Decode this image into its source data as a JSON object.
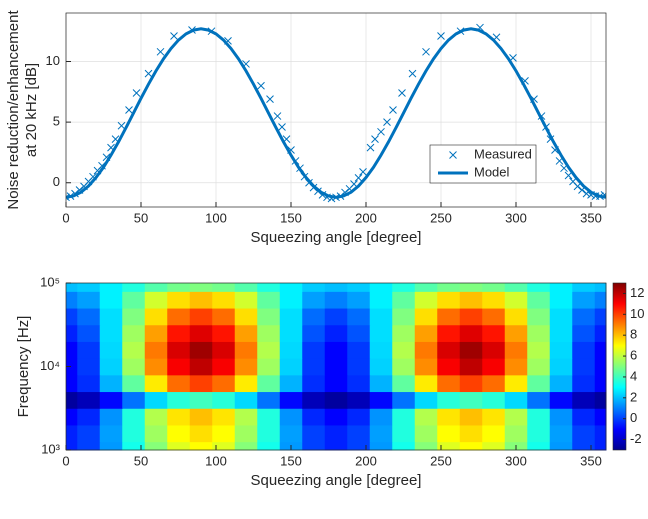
{
  "chart_data": [
    {
      "type": "line",
      "xlabel": "Squeezing angle [degree]",
      "ylabel": [
        "Noise reduction/enhancement",
        "at 20 kHz [dB]"
      ],
      "xlim": [
        0,
        360
      ],
      "xticks": [
        0,
        50,
        100,
        150,
        200,
        250,
        300,
        350
      ],
      "ylim": [
        -2,
        14
      ],
      "yticks": [
        0,
        5,
        10
      ],
      "grid": true,
      "legend": "lower right",
      "series": [
        {
          "name": "Measured",
          "color": "#0072bd",
          "style": "markers",
          "x": [
            0,
            3,
            6,
            9,
            12,
            15,
            18,
            21,
            24,
            27,
            30,
            33,
            37,
            42,
            47,
            55,
            63,
            72,
            84,
            97,
            108,
            120,
            130,
            136,
            141,
            144,
            147,
            150,
            153,
            156,
            159,
            162,
            165,
            168,
            171,
            174,
            177,
            180,
            183,
            186,
            189,
            192,
            195,
            198,
            203,
            206,
            210,
            214,
            218,
            224,
            231,
            240,
            250,
            263,
            276,
            287,
            298,
            306,
            312,
            317,
            320,
            323,
            326,
            329,
            332,
            335,
            338,
            341,
            344,
            347,
            350,
            353,
            356,
            359
          ],
          "values": [
            -1.2,
            -1.1,
            -0.9,
            -0.6,
            -0.3,
            0.1,
            0.5,
            1.0,
            1.4,
            2.1,
            2.9,
            3.6,
            4.7,
            6.0,
            7.4,
            9.0,
            10.8,
            12.1,
            12.6,
            12.5,
            11.7,
            9.8,
            8.0,
            6.9,
            5.5,
            4.6,
            3.6,
            2.7,
            1.8,
            1.2,
            0.5,
            0.0,
            -0.4,
            -0.7,
            -1.0,
            -1.2,
            -1.3,
            -1.2,
            -1.1,
            -0.8,
            -0.5,
            -0.1,
            0.4,
            0.9,
            2.9,
            3.6,
            4.2,
            5.0,
            6.0,
            7.4,
            9.0,
            10.8,
            12.1,
            12.5,
            12.8,
            12.0,
            10.3,
            8.4,
            6.9,
            5.5,
            4.6,
            3.6,
            2.7,
            1.8,
            1.2,
            0.6,
            0.1,
            -0.3,
            -0.6,
            -0.9,
            -1.0,
            -1.1,
            -1.1,
            -1.0
          ]
        },
        {
          "name": "Model",
          "color": "#0072bd",
          "style": "line",
          "x": [
            0,
            5,
            10,
            15,
            20,
            25,
            30,
            35,
            40,
            45,
            50,
            55,
            60,
            65,
            70,
            75,
            80,
            85,
            90,
            95,
            100,
            105,
            110,
            115,
            120,
            125,
            130,
            135,
            140,
            145,
            150,
            155,
            160,
            165,
            170,
            175,
            180,
            185,
            190,
            195,
            200,
            205,
            210,
            215,
            220,
            225,
            230,
            235,
            240,
            245,
            250,
            255,
            260,
            265,
            270,
            275,
            280,
            285,
            290,
            295,
            300,
            305,
            310,
            315,
            320,
            325,
            330,
            335,
            340,
            345,
            350,
            355,
            360
          ],
          "values": [
            -1.2,
            -1.09,
            -0.78,
            -0.27,
            0.43,
            1.28,
            2.28,
            3.37,
            4.54,
            5.75,
            6.96,
            8.13,
            9.23,
            10.22,
            11.07,
            11.77,
            12.28,
            12.59,
            12.7,
            12.59,
            12.28,
            11.77,
            11.07,
            10.22,
            9.23,
            8.13,
            6.96,
            5.75,
            4.54,
            3.37,
            2.28,
            1.28,
            0.43,
            -0.27,
            -0.78,
            -1.09,
            -1.2,
            -1.09,
            -0.78,
            -0.27,
            0.43,
            1.28,
            2.28,
            3.37,
            4.54,
            5.75,
            6.96,
            8.13,
            9.23,
            10.22,
            11.07,
            11.77,
            12.28,
            12.59,
            12.7,
            12.59,
            12.28,
            11.77,
            11.07,
            10.22,
            9.23,
            8.13,
            6.96,
            5.75,
            4.54,
            3.37,
            2.28,
            1.28,
            0.43,
            -0.27,
            -0.78,
            -1.09,
            -1.2
          ]
        }
      ]
    },
    {
      "type": "heatmap",
      "xlabel": "Squeezing angle [degree]",
      "ylabel": "Frequency [Hz]",
      "xlim": [
        0,
        360
      ],
      "xticks": [
        0,
        50,
        100,
        150,
        200,
        250,
        300,
        350
      ],
      "ylim": [
        1000,
        100000
      ],
      "yscale": "log",
      "yticks": [
        {
          "value": 1000,
          "label": "10³"
        },
        {
          "value": 10000,
          "label": "10⁴"
        },
        {
          "value": 100000,
          "label": "10⁵"
        }
      ],
      "colormap": "jet",
      "clim": [
        -3,
        13
      ],
      "cticks": [
        -2,
        0,
        2,
        4,
        6,
        8,
        10,
        12
      ],
      "x": [
        0,
        15,
        30,
        45,
        60,
        75,
        90,
        105,
        120,
        135,
        150,
        165,
        180,
        195,
        210,
        225,
        240,
        255,
        270,
        285,
        300,
        315,
        330,
        345,
        360
      ],
      "y": [
        1000,
        1585,
        2512,
        3981,
        6310,
        10000,
        15849,
        25119,
        39811,
        63096,
        100000
      ],
      "z": [
        [
          -0.5,
          0,
          1.4,
          3.3,
          5.1,
          6.5,
          7,
          6.5,
          5.1,
          3.3,
          1.4,
          0,
          -0.5,
          0,
          1.4,
          3.3,
          5.1,
          6.5,
          7,
          6.5,
          5.1,
          3.3,
          1.4,
          0,
          -0.5
        ],
        [
          -0.5,
          0,
          1.5,
          3.5,
          5.5,
          7,
          7.5,
          7,
          5.5,
          3.5,
          1.5,
          0,
          -0.5,
          0,
          1.5,
          3.5,
          5.5,
          7,
          7.5,
          7,
          5.5,
          3.5,
          1.5,
          0,
          -0.5
        ],
        [
          -1,
          -0.4,
          1.3,
          3.5,
          5.8,
          7.4,
          8,
          7.4,
          5.8,
          3.5,
          1.3,
          -0.4,
          -1,
          -0.4,
          1.3,
          3.5,
          5.8,
          7.4,
          8,
          7.4,
          5.8,
          3.5,
          1.3,
          -0.4,
          -1
        ],
        [
          -2.5,
          -2.1,
          -0.9,
          0.8,
          2.4,
          3.6,
          4,
          3.6,
          2.4,
          0.8,
          -0.9,
          -2.1,
          -2.5,
          -2.1,
          -0.9,
          0.8,
          2.4,
          3.6,
          4,
          3.6,
          2.4,
          0.8,
          -0.9,
          -2.1,
          -2.5
        ],
        [
          -1,
          -0.3,
          1.8,
          4.5,
          7.3,
          9.3,
          10,
          9.3,
          7.3,
          4.5,
          1.8,
          -0.3,
          -1,
          -0.3,
          1.8,
          4.5,
          7.3,
          9.3,
          10,
          9.3,
          7.3,
          4.5,
          1.8,
          -0.3,
          -1
        ],
        [
          -1,
          -0.1,
          2.3,
          5.5,
          8.8,
          11.1,
          12,
          11.1,
          8.8,
          5.5,
          2.3,
          -0.1,
          -1,
          -0.1,
          2.3,
          5.5,
          8.8,
          11.1,
          12,
          11.1,
          8.8,
          5.5,
          2.3,
          -0.1,
          -1
        ],
        [
          -1,
          -0.1,
          2.4,
          5.8,
          9.1,
          11.6,
          12.5,
          11.6,
          9.1,
          5.8,
          2.4,
          -0.1,
          -1,
          -0.1,
          2.4,
          5.8,
          9.1,
          11.6,
          12.5,
          11.6,
          9.1,
          5.8,
          2.4,
          -0.1,
          -1
        ],
        [
          -0.5,
          0.3,
          2.5,
          5.5,
          8.5,
          10.7,
          11.5,
          10.7,
          8.5,
          5.5,
          2.5,
          0.3,
          -0.5,
          0.3,
          2.5,
          5.5,
          8.5,
          10.7,
          11.5,
          10.7,
          8.5,
          5.5,
          2.5,
          0.3,
          -0.5
        ],
        [
          0,
          0.7,
          2.5,
          5,
          7.5,
          9.3,
          10,
          9.3,
          7.5,
          5,
          2.5,
          0.7,
          0,
          0.7,
          2.5,
          5,
          7.5,
          9.3,
          10,
          9.3,
          7.5,
          5,
          2.5,
          0.7,
          0
        ],
        [
          1,
          1.5,
          2.8,
          4.5,
          6.3,
          7.5,
          8,
          7.5,
          6.3,
          4.5,
          2.8,
          1.5,
          1,
          1.5,
          2.8,
          4.5,
          6.3,
          7.5,
          8,
          7.5,
          6.3,
          4.5,
          2.8,
          1.5,
          1
        ],
        [
          2,
          2.2,
          2.8,
          3.5,
          4.3,
          4.8,
          5,
          4.8,
          4.3,
          3.5,
          2.8,
          2.2,
          2,
          2.2,
          2.8,
          3.5,
          4.3,
          4.8,
          5,
          4.8,
          4.3,
          3.5,
          2.8,
          2.2,
          2
        ]
      ]
    }
  ]
}
